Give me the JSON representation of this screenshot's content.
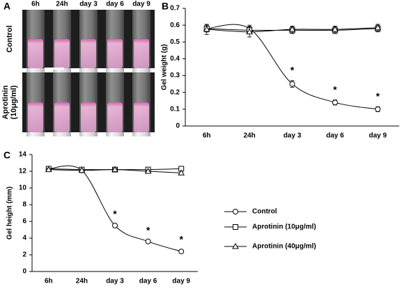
{
  "panel_labels": [
    "A",
    "B",
    "C"
  ],
  "panel_a": {
    "columns": [
      "6h",
      "24h",
      "day 3",
      "day 6",
      "day 9"
    ],
    "rows": [
      {
        "lines": [
          "Control"
        ]
      },
      {
        "lines": [
          "Aprotinin",
          "(10μg/ml)"
        ]
      }
    ]
  },
  "chart_data": [
    {
      "type": "line",
      "y_label": "Gel weight (g)",
      "categories": [
        "6h",
        "24h",
        "day 3",
        "day 6",
        "day 9"
      ],
      "ylim": [
        0,
        0.7
      ],
      "yticks": [
        0,
        0.1,
        0.2,
        0.3,
        0.4,
        0.5,
        0.6,
        0.7
      ],
      "smooth": true,
      "series": [
        {
          "marker": "circle",
          "color": "#000",
          "values": [
            0.58,
            0.58,
            0.25,
            0.14,
            0.1
          ],
          "errors": [
            0.02,
            0.02,
            0.02,
            0.015,
            0.015
          ]
        },
        {
          "marker": "square",
          "color": "#000",
          "values": [
            0.58,
            0.57,
            0.57,
            0.57,
            0.58
          ],
          "errors": [
            0.02,
            0.02,
            0.02,
            0.02,
            0.02
          ]
        },
        {
          "marker": "triangle",
          "color": "#000",
          "values": [
            0.575,
            0.56,
            0.575,
            0.575,
            0.585
          ],
          "errors": [
            0.03,
            0.03,
            0.02,
            0.02,
            0.02
          ]
        }
      ],
      "annotations": [
        {
          "text": "*",
          "x": "day 3"
        },
        {
          "text": "*",
          "x": "day 6"
        },
        {
          "text": "*",
          "x": "day 9"
        }
      ]
    },
    {
      "type": "line",
      "y_label": "Gel height (mm)",
      "categories": [
        "6h",
        "24h",
        "day 3",
        "day 6",
        "day 9"
      ],
      "ylim": [
        0,
        14
      ],
      "yticks": [
        0,
        2,
        4,
        6,
        8,
        10,
        12,
        14
      ],
      "smooth": true,
      "series": [
        {
          "name": "Control",
          "marker": "circle",
          "color": "#000",
          "values": [
            12.3,
            12.1,
            5.5,
            3.6,
            2.4
          ],
          "errors": [
            0.2,
            0.15,
            0.15,
            0.1,
            0.2
          ]
        },
        {
          "name": "Aprotinin (10μg/ml)",
          "marker": "square",
          "color": "#000",
          "values": [
            12.3,
            12.2,
            12.2,
            12.2,
            12.3
          ],
          "errors": [
            0.15,
            0.15,
            0.15,
            0.15,
            0.15
          ]
        },
        {
          "name": "Aprotinin (40μg/ml)",
          "marker": "triangle",
          "color": "#000",
          "values": [
            12.2,
            12.1,
            12.2,
            12.0,
            11.8
          ],
          "errors": [
            0.15,
            0.15,
            0.15,
            0.15,
            0.2
          ]
        }
      ],
      "annotations": [
        {
          "text": "*",
          "x": "day 3"
        },
        {
          "text": "*",
          "x": "day 6"
        },
        {
          "text": "*",
          "x": "day 9"
        }
      ]
    }
  ]
}
